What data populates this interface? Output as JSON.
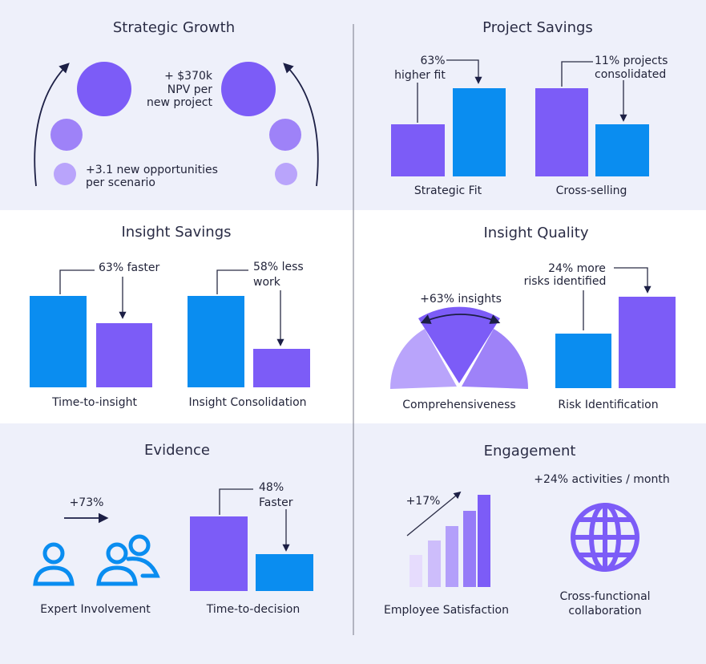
{
  "panels": [
    {
      "title": "Strategic Growth",
      "texts": [
        "+ $370k",
        "NPV per",
        "new project",
        "+3.1 new opportunities",
        "per scenario"
      ]
    },
    {
      "title": "Project Savings",
      "texts": [
        "63%",
        "higher fit",
        "11% projects",
        "consolidated",
        "Strategic Fit",
        "Cross-selling"
      ]
    },
    {
      "title": "Insight Savings",
      "texts": [
        "63% faster",
        "58% less",
        "work",
        "Time-to-insight",
        "Insight Consolidation"
      ]
    },
    {
      "title": "Insight Quality",
      "texts": [
        "+63% insights",
        "24% more",
        "risks identified",
        "Comprehensiveness",
        "Risk Identification"
      ]
    },
    {
      "title": "Evidence",
      "texts": [
        "+73%",
        "48%",
        "Faster",
        "Expert Involvement",
        "Time-to-decision"
      ]
    },
    {
      "title": "Engagement",
      "texts": [
        "+24% activities / month",
        "+17%",
        "Employee Satisfaction",
        "Cross-functional",
        "collaboration"
      ]
    }
  ]
}
